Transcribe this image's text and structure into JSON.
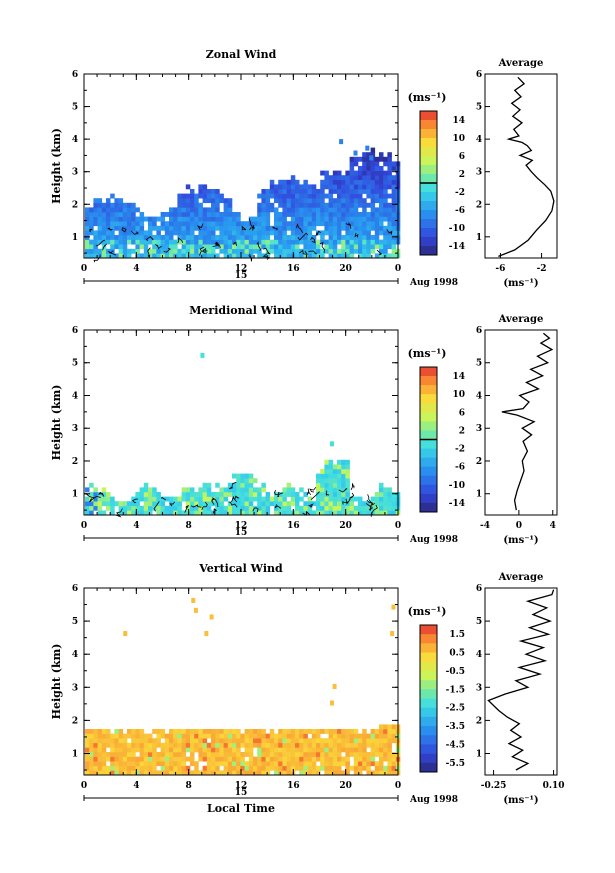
{
  "chart_data": [
    {
      "type": "heatmap",
      "title": "Zonal Wind",
      "ylabel": "Height (km)",
      "xlabel": "",
      "x_ticks": [
        "0",
        "4",
        "8",
        "12",
        "16",
        "20",
        "0"
      ],
      "y_ticks": [
        "1",
        "2",
        "3",
        "4",
        "5",
        "6"
      ],
      "xlim": [
        0,
        24
      ],
      "ylim": [
        0.35,
        6
      ],
      "day_label": "15",
      "date_label": "Aug 1998",
      "colorbar": {
        "unit": "(ms⁻¹)",
        "ticks": [
          "14",
          "10",
          "6",
          "2",
          "-2",
          "-6",
          "-10",
          "-14"
        ],
        "vmin": -16,
        "vmax": 16,
        "divider": 0
      },
      "field": "zonal",
      "profile": {
        "title": "Average",
        "xlabel": "(ms⁻¹)",
        "x_ticks": [
          "-6",
          "-2"
        ],
        "xlim": [
          -7.5,
          -0.5
        ],
        "points": [
          [
            -6.2,
            0.4
          ],
          [
            -4.6,
            0.6
          ],
          [
            -3.3,
            0.9
          ],
          [
            -2.5,
            1.2
          ],
          [
            -1.6,
            1.5
          ],
          [
            -1.0,
            1.8
          ],
          [
            -0.8,
            2.1
          ],
          [
            -1.1,
            2.4
          ],
          [
            -1.7,
            2.6
          ],
          [
            -2.4,
            2.8
          ],
          [
            -3.0,
            3.0
          ],
          [
            -3.5,
            3.2
          ],
          [
            -2.9,
            3.35
          ],
          [
            -4.1,
            3.5
          ],
          [
            -3.0,
            3.65
          ],
          [
            -3.4,
            3.8
          ],
          [
            -3.9,
            3.9
          ],
          [
            -5.2,
            4.0
          ],
          [
            -4.2,
            4.1
          ],
          [
            -4.7,
            4.3
          ],
          [
            -3.9,
            4.5
          ],
          [
            -4.8,
            4.7
          ],
          [
            -4.1,
            4.9
          ],
          [
            -4.9,
            5.1
          ],
          [
            -4.0,
            5.3
          ],
          [
            -4.6,
            5.5
          ],
          [
            -3.7,
            5.7
          ],
          [
            -4.3,
            5.9
          ]
        ]
      }
    },
    {
      "type": "heatmap",
      "title": "Meridional Wind",
      "ylabel": "Height (km)",
      "xlabel": "",
      "x_ticks": [
        "0",
        "4",
        "8",
        "12",
        "16",
        "20",
        "0"
      ],
      "y_ticks": [
        "1",
        "2",
        "3",
        "4",
        "5",
        "6"
      ],
      "xlim": [
        0,
        24
      ],
      "ylim": [
        0.35,
        6
      ],
      "day_label": "15",
      "date_label": "Aug 1998",
      "colorbar": {
        "unit": "(ms⁻¹)",
        "ticks": [
          "14",
          "10",
          "6",
          "2",
          "-2",
          "-6",
          "-10",
          "-14"
        ],
        "vmin": -16,
        "vmax": 16,
        "divider": 0
      },
      "field": "meridional",
      "profile": {
        "title": "Average",
        "xlabel": "(ms⁻¹)",
        "x_ticks": [
          "-4",
          "0",
          "4"
        ],
        "xlim": [
          -4,
          4.5
        ],
        "points": [
          [
            -0.3,
            0.5
          ],
          [
            -0.5,
            0.8
          ],
          [
            -0.2,
            1.1
          ],
          [
            0.2,
            1.4
          ],
          [
            0.6,
            1.7
          ],
          [
            0.4,
            2.0
          ],
          [
            1.0,
            2.3
          ],
          [
            0.5,
            2.6
          ],
          [
            1.5,
            2.8
          ],
          [
            0.4,
            3.0
          ],
          [
            1.8,
            3.2
          ],
          [
            -0.2,
            3.4
          ],
          [
            -2.0,
            3.5
          ],
          [
            0.5,
            3.6
          ],
          [
            1.2,
            3.8
          ],
          [
            0.1,
            4.0
          ],
          [
            2.3,
            4.2
          ],
          [
            0.9,
            4.4
          ],
          [
            2.8,
            4.6
          ],
          [
            1.4,
            4.8
          ],
          [
            3.4,
            5.0
          ],
          [
            2.2,
            5.2
          ],
          [
            3.9,
            5.4
          ],
          [
            2.6,
            5.6
          ],
          [
            3.6,
            5.75
          ],
          [
            2.9,
            5.9
          ]
        ]
      }
    },
    {
      "type": "heatmap",
      "title": "Vertical Wind",
      "ylabel": "Height (km)",
      "xlabel": "Local Time",
      "x_ticks": [
        "0",
        "4",
        "8",
        "12",
        "16",
        "20",
        "0"
      ],
      "y_ticks": [
        "1",
        "2",
        "3",
        "4",
        "5",
        "6"
      ],
      "xlim": [
        0,
        24
      ],
      "ylim": [
        0.35,
        6
      ],
      "day_label": "15",
      "date_label": "Aug 1998",
      "colorbar": {
        "unit": "(ms⁻¹)",
        "ticks": [
          "1.5",
          "0.5",
          "-0.5",
          "-1.5",
          "-2.5",
          "-3.5",
          "-4.5",
          "-5.5"
        ],
        "vmin": -6,
        "vmax": 2,
        "divider": null
      },
      "field": "vertical",
      "profile": {
        "title": "Average",
        "xlabel": "(ms⁻¹)",
        "x_ticks": [
          "-0.25",
          "0.10"
        ],
        "xlim": [
          -0.3,
          0.12
        ],
        "points": [
          [
            -0.12,
            0.5
          ],
          [
            -0.05,
            0.7
          ],
          [
            -0.14,
            0.9
          ],
          [
            -0.08,
            1.1
          ],
          [
            -0.16,
            1.3
          ],
          [
            -0.09,
            1.5
          ],
          [
            -0.15,
            1.7
          ],
          [
            -0.1,
            1.9
          ],
          [
            -0.17,
            2.1
          ],
          [
            -0.22,
            2.3
          ],
          [
            -0.28,
            2.6
          ],
          [
            -0.18,
            2.8
          ],
          [
            -0.05,
            3.0
          ],
          [
            -0.12,
            3.2
          ],
          [
            0.02,
            3.4
          ],
          [
            -0.1,
            3.6
          ],
          [
            0.05,
            3.8
          ],
          [
            -0.06,
            4.0
          ],
          [
            0.04,
            4.2
          ],
          [
            -0.09,
            4.4
          ],
          [
            0.07,
            4.6
          ],
          [
            -0.04,
            4.8
          ],
          [
            0.08,
            5.0
          ],
          [
            -0.02,
            5.2
          ],
          [
            0.06,
            5.4
          ],
          [
            -0.05,
            5.6
          ],
          [
            0.09,
            5.8
          ],
          [
            0.1,
            5.95
          ]
        ]
      }
    }
  ]
}
